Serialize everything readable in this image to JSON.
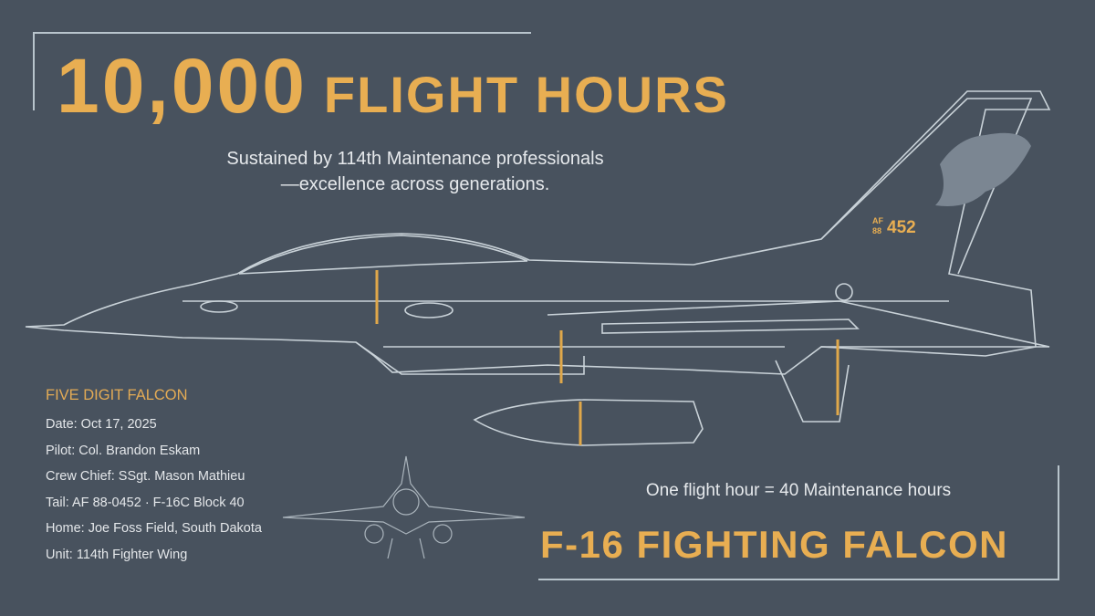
{
  "headline": {
    "number": "10,000",
    "label": "FLIGHT HOURS"
  },
  "subtitle": {
    "line1": "Sustained by 114th Maintenance professionals",
    "line2": "—excellence across generations."
  },
  "info": {
    "title": "FIVE DIGIT FALCON",
    "rows": [
      "Date: Oct 17, 2025",
      "Pilot: Col. Brandon Eskam",
      "Crew Chief: SSgt. Mason Mathieu",
      "Tail: AF 88-0452 · F-16C Block 40",
      "Home: Joe Foss Field, South Dakota",
      "Unit: 114th Fighter Wing"
    ]
  },
  "ratio": "One flight hour = 40 Maintenance hours",
  "aircraft_name": "F-16 FIGHTING FALCON",
  "tail_marking": {
    "prefix_top": "AF",
    "prefix_bottom": "88",
    "number": "452"
  },
  "colors": {
    "background": "#48525e",
    "accent": "#e8ae52",
    "line": "#b8c4cc"
  }
}
